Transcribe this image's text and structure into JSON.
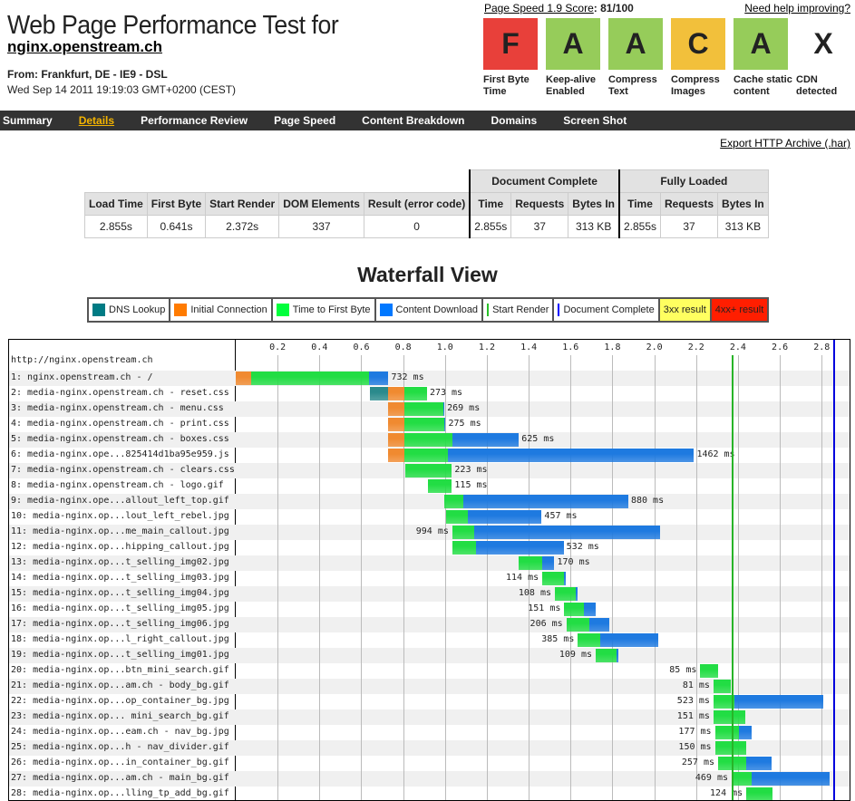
{
  "header": {
    "title": "Web Page Performance Test for",
    "site": "nginx.openstream.ch",
    "from": "From: Frankfurt, DE - IE9 - DSL",
    "date": "Wed Sep 14 2011 19:19:03 GMT+0200 (CEST)",
    "pagespeed_link": "Page Speed 1.9 Score",
    "pagespeed_score": ": 81/100",
    "help": "Need help improving?"
  },
  "grades": [
    {
      "grade": "F",
      "label": "First Byte Time",
      "color": "#e8403a"
    },
    {
      "grade": "A",
      "label": "Keep-alive Enabled",
      "color": "#96cc5a"
    },
    {
      "grade": "A",
      "label": "Compress Text",
      "color": "#96cc5a"
    },
    {
      "grade": "C",
      "label": "Compress Images",
      "color": "#f2c03b"
    },
    {
      "grade": "A",
      "label": "Cache static content",
      "color": "#96cc5a"
    },
    {
      "grade": "X",
      "label": "CDN detected",
      "color": "#ffffff"
    }
  ],
  "nav": [
    "Summary",
    "Details",
    "Performance Review",
    "Page Speed",
    "Content Breakdown",
    "Domains",
    "Screen Shot"
  ],
  "nav_active": 1,
  "export": "Export HTTP Archive (.har)",
  "results": {
    "group_doc": "Document Complete",
    "group_full": "Fully Loaded",
    "headers": [
      "Load Time",
      "First Byte",
      "Start Render",
      "DOM Elements",
      "Result (error code)",
      "Time",
      "Requests",
      "Bytes In",
      "Time",
      "Requests",
      "Bytes In"
    ],
    "values": [
      "2.855s",
      "0.641s",
      "2.372s",
      "337",
      "0",
      "2.855s",
      "37",
      "313 KB",
      "2.855s",
      "37",
      "313 KB"
    ]
  },
  "waterfall_title": "Waterfall View",
  "legend": [
    {
      "label": "DNS Lookup",
      "color": "#007b84",
      "kind": "box"
    },
    {
      "label": "Initial Connection",
      "color": "#ff7b00",
      "kind": "box"
    },
    {
      "label": "Time to First Byte",
      "color": "#00ff3c",
      "kind": "box"
    },
    {
      "label": "Content Download",
      "color": "#0078ff",
      "kind": "box"
    },
    {
      "label": "Start Render",
      "color": "#28c028",
      "kind": "line"
    },
    {
      "label": "Document Complete",
      "color": "#0000ff",
      "kind": "line"
    },
    {
      "label": "3xx result",
      "color": "#ffff60",
      "kind": "fill"
    },
    {
      "label": "4xx+ result",
      "color": "#ff1e00",
      "kind": "fill"
    }
  ],
  "chart_data": {
    "type": "waterfall",
    "xunit": "s",
    "xlim": [
      0,
      2.9
    ],
    "ticks": [
      "0.2",
      "0.4",
      "0.6",
      "0.8",
      "1.0",
      "1.2",
      "1.4",
      "1.6",
      "1.8",
      "2.0",
      "2.2",
      "2.4",
      "2.6",
      "2.8"
    ],
    "page_url": "http://nginx.openstream.ch",
    "start_render": 2.372,
    "document_complete": 2.855,
    "colors": {
      "dns": "#2a8a8c",
      "connect": "#f08a30",
      "ttfb": "#22dd44",
      "download": "#1e7ae0"
    },
    "requests": [
      {
        "label": "1: nginx.openstream.ch - /",
        "connect": [
          0,
          0.075
        ],
        "ttfb": [
          0.075,
          0.638
        ],
        "download": [
          0.638,
          0.73
        ],
        "ms": "732 ms"
      },
      {
        "label": "2: media-nginx.openstream.ch - reset.css",
        "dns": [
          0.641,
          0.728
        ],
        "connect": [
          0.728,
          0.806
        ],
        "ttfb": [
          0.806,
          0.914
        ],
        "ms": "273 ms"
      },
      {
        "label": "3: media-nginx.openstream.ch - menu.css",
        "connect": [
          0.728,
          0.806
        ],
        "ttfb": [
          0.806,
          0.993
        ],
        "download": [
          0.993,
          0.997
        ],
        "ms": "269 ms"
      },
      {
        "label": "4: media-nginx.openstream.ch - print.css",
        "connect": [
          0.728,
          0.806
        ],
        "ttfb": [
          0.806,
          0.998
        ],
        "download": [
          0.998,
          1.003
        ],
        "ms": "275 ms"
      },
      {
        "label": "5: media-nginx.openstream.ch - boxes.css",
        "connect": [
          0.728,
          0.806
        ],
        "ttfb": [
          0.806,
          1.035
        ],
        "download": [
          1.035,
          1.353
        ],
        "ms": "625 ms"
      },
      {
        "label": "6: media-nginx.ope...825414d1ba95e959.js",
        "connect": [
          0.728,
          0.806
        ],
        "ttfb": [
          0.806,
          1.015
        ],
        "download": [
          1.015,
          2.19
        ],
        "ms": "1462 ms"
      },
      {
        "label": "7: media-nginx.openstream.ch - clears.css",
        "ttfb": [
          0.81,
          1.033
        ],
        "ms": "223 ms"
      },
      {
        "label": "8: media-nginx.openstream.ch - logo.gif",
        "ttfb": [
          0.918,
          1.033
        ],
        "ms": "115 ms"
      },
      {
        "label": "9: media-nginx.ope...allout_left_top.gif",
        "ttfb": [
          0.996,
          1.087
        ],
        "download": [
          1.087,
          1.876
        ],
        "ms": "880 ms"
      },
      {
        "label": "10: media-nginx.op...lout_left_rebel.jpg",
        "ttfb": [
          1.005,
          1.11
        ],
        "download": [
          1.11,
          1.462
        ],
        "ms": "457 ms"
      },
      {
        "label": "11: media-nginx.op...me_main_callout.jpg",
        "ttfb": [
          1.035,
          1.14
        ],
        "download": [
          1.14,
          2.029
        ],
        "ms": "994 ms"
      },
      {
        "label": "12: media-nginx.op...hipping_callout.jpg",
        "ttfb": [
          1.035,
          1.148
        ],
        "download": [
          1.148,
          1.567
        ],
        "ms": "532 ms"
      },
      {
        "label": "13: media-nginx.op...t_selling_img02.jpg",
        "ttfb": [
          1.353,
          1.465
        ],
        "download": [
          1.465,
          1.523
        ],
        "ms": "170 ms"
      },
      {
        "label": "14: media-nginx.op...t_selling_img03.jpg",
        "ttfb": [
          1.465,
          1.57
        ],
        "download": [
          1.57,
          1.579
        ],
        "ms": "114 ms"
      },
      {
        "label": "15: media-nginx.op...t_selling_img04.jpg",
        "ttfb": [
          1.525,
          1.624
        ],
        "download": [
          1.624,
          1.633
        ],
        "ms": "108 ms"
      },
      {
        "label": "16: media-nginx.op...t_selling_img05.jpg",
        "ttfb": [
          1.57,
          1.663
        ],
        "download": [
          1.663,
          1.721
        ],
        "ms": "151 ms"
      },
      {
        "label": "17: media-nginx.op...t_selling_img06.jpg",
        "ttfb": [
          1.58,
          1.69
        ],
        "download": [
          1.69,
          1.786
        ],
        "ms": "206 ms"
      },
      {
        "label": "18: media-nginx.op...l_right_callout.jpg",
        "ttfb": [
          1.635,
          1.74
        ],
        "download": [
          1.74,
          2.02
        ],
        "ms": "385 ms"
      },
      {
        "label": "19: media-nginx.op...t_selling_img01.jpg",
        "ttfb": [
          1.72,
          1.82
        ],
        "download": [
          1.82,
          1.829
        ],
        "ms": "109 ms"
      },
      {
        "label": "20: media-nginx.op...btn_mini_search.gif",
        "ttfb": [
          2.22,
          2.305
        ],
        "ms": "85 ms"
      },
      {
        "label": "21: media-nginx.op...am.ch - body_bg.gif",
        "ttfb": [
          2.283,
          2.364
        ],
        "ms": "81 ms"
      },
      {
        "label": "22: media-nginx.op...op_container_bg.jpg",
        "ttfb": [
          2.283,
          2.383
        ],
        "download": [
          2.383,
          2.806
        ],
        "ms": "523 ms"
      },
      {
        "label": "23: media-nginx.op... mini_search_bg.gif",
        "ttfb": [
          2.283,
          2.434
        ],
        "ms": "151 ms"
      },
      {
        "label": "24: media-nginx.op...eam.ch - nav_bg.jpg",
        "ttfb": [
          2.29,
          2.405
        ],
        "download": [
          2.405,
          2.467
        ],
        "ms": "177 ms"
      },
      {
        "label": "25: media-nginx.op...h - nav_divider.gif",
        "ttfb": [
          2.29,
          2.44
        ],
        "ms": "150 ms"
      },
      {
        "label": "26: media-nginx.op...in_container_bg.gif",
        "ttfb": [
          2.305,
          2.44
        ],
        "download": [
          2.44,
          2.562
        ],
        "ms": "257 ms"
      },
      {
        "label": "27: media-nginx.op...am.ch - main_bg.gif",
        "ttfb": [
          2.37,
          2.465
        ],
        "download": [
          2.465,
          2.839
        ],
        "ms": "469 ms"
      },
      {
        "label": "28: media-nginx.op...lling_tp_add_bg.gif",
        "ttfb": [
          2.44,
          2.564
        ],
        "ms": "124 ms"
      }
    ]
  }
}
